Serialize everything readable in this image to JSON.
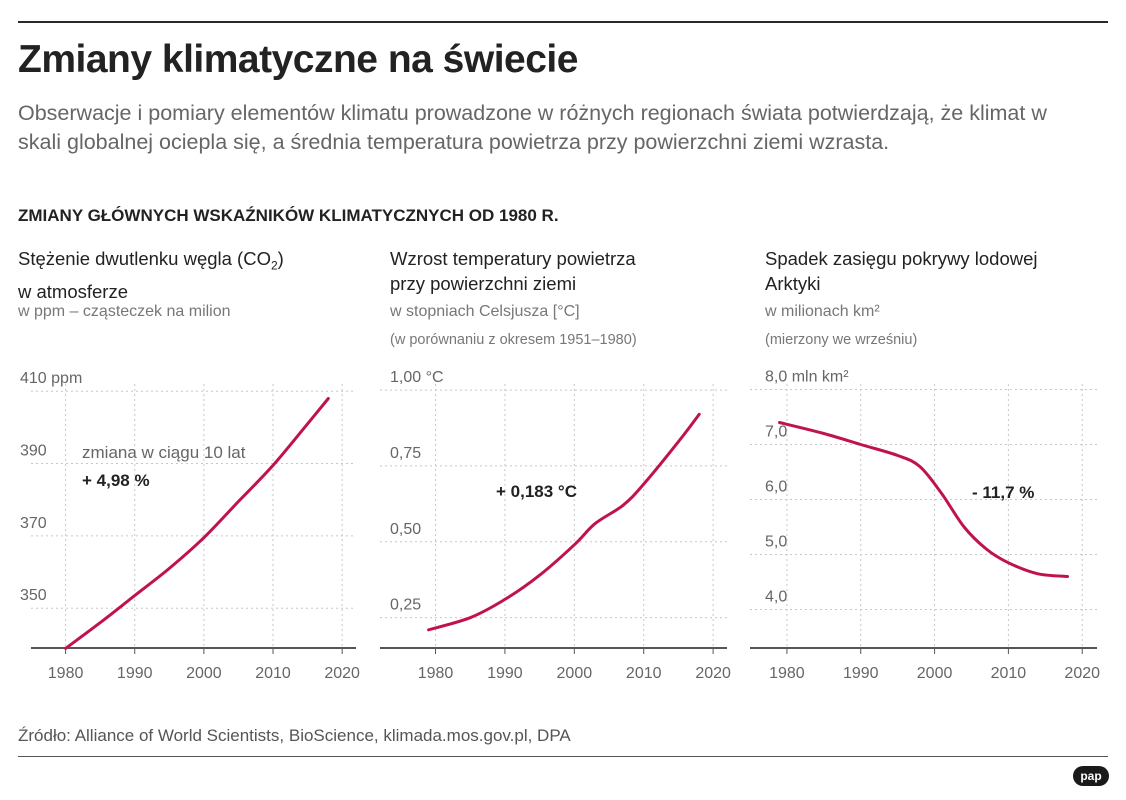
{
  "title": "Zmiany klimatyczne na świecie",
  "lead": "Obserwacje i pomiary elementów klimatu prowadzone w różnych regionach świata potwierdzają, że klimat w skali globalnej ociepla się, a średnia temperatura powietrza przy powierzchni ziemi wzrasta.",
  "section_heading": "ZMIANY GŁÓWNYCH WSKAŹNIKÓW KLIMATYCZNYCH OD 1980 R.",
  "panels": [
    {
      "title_1": "Stężenie dwutlenku węgla (CO",
      "title_sub": "2",
      "title_2": ")",
      "title_3": "w atmosferze",
      "unit": "w ppm – cząsteczek na milion"
    },
    {
      "title_1": "Wzrost temperatury powietrza",
      "title_2": "przy powierzchni ziemi",
      "unit": "w stopniach Celsjusza [°C]",
      "note": "(w porównaniu z okresem 1951–1980)"
    },
    {
      "title_1": "Spadek zasięgu pokrywy lodowej",
      "title_2": "Arktyki",
      "unit": "w milionach km²",
      "note": "(mierzony we wrześniu)"
    }
  ],
  "source": "Źródło: Alliance of World Scientists, BioScience, klimada.mos.gov.pl, DPA",
  "logo": "pap",
  "colors": {
    "line": "#c0134e",
    "grid": "#c8c8c8",
    "axis": "#555555"
  },
  "chart_data": [
    {
      "type": "line",
      "title": "Stężenie dwutlenku węgla (CO2) w atmosferze",
      "ylabel": "w ppm – cząsteczek na milion",
      "xlim": [
        1975,
        2022
      ],
      "ylim": [
        339,
        412
      ],
      "x_ticks": [
        1980,
        1990,
        2000,
        2010,
        2020
      ],
      "x_tick_labels": [
        "1980",
        "1990",
        "2000",
        "2010",
        "2020"
      ],
      "y_ticks": [
        350,
        370,
        390,
        410
      ],
      "y_tick_labels": [
        "350",
        "370",
        "390",
        "410 ppm"
      ],
      "grid": true,
      "annotation": {
        "label": "zmiana w ciągu 10 lat",
        "value": "+ 4,98 %"
      },
      "series": [
        {
          "x": [
            1980,
            1985,
            1990,
            1995,
            2000,
            2005,
            2010,
            2015,
            2018
          ],
          "y": [
            338.9,
            346,
            353.5,
            361,
            369.5,
            379.5,
            389.5,
            401,
            408
          ]
        }
      ]
    },
    {
      "type": "line",
      "title": "Wzrost temperatury powietrza przy powierzchni ziemi",
      "ylabel": "w stopniach Celsjusza [°C]",
      "xlim": [
        1972,
        2022
      ],
      "ylim": [
        0.15,
        1.02
      ],
      "x_ticks": [
        1980,
        1990,
        2000,
        2010,
        2020
      ],
      "x_tick_labels": [
        "1980",
        "1990",
        "2000",
        "2010",
        "2020"
      ],
      "y_ticks": [
        0.25,
        0.5,
        0.75,
        1.0
      ],
      "y_tick_labels": [
        "0,25",
        "0,50",
        "0,75",
        "1,00 °C"
      ],
      "grid": true,
      "annotation": {
        "label": "",
        "value": "+ 0,183 °C"
      },
      "series": [
        {
          "x": [
            1979,
            1985,
            1990,
            1995,
            2000,
            2003,
            2007,
            2010,
            2015,
            2018
          ],
          "y": [
            0.21,
            0.25,
            0.31,
            0.39,
            0.49,
            0.56,
            0.62,
            0.69,
            0.83,
            0.92
          ]
        }
      ]
    },
    {
      "type": "line",
      "title": "Spadek zasięgu pokrywy lodowej Arktyki",
      "ylabel": "w milionach km²",
      "xlim": [
        1975,
        2022
      ],
      "ylim": [
        3.3,
        8.1
      ],
      "x_ticks": [
        1980,
        1990,
        2000,
        2010,
        2020
      ],
      "x_tick_labels": [
        "1980",
        "1990",
        "2000",
        "2010",
        "2020"
      ],
      "y_ticks": [
        4.0,
        5.0,
        6.0,
        7.0,
        8.0
      ],
      "y_tick_labels": [
        "4,0",
        "5,0",
        "6,0",
        "7,0",
        "8,0 mln km²"
      ],
      "grid": true,
      "annotation": {
        "label": "",
        "value": "- 11,7 %"
      },
      "series": [
        {
          "x": [
            1979,
            1985,
            1990,
            1995,
            1998,
            2001,
            2004,
            2007,
            2010,
            2014,
            2018
          ],
          "y": [
            7.4,
            7.2,
            7.0,
            6.8,
            6.6,
            6.1,
            5.5,
            5.1,
            4.85,
            4.65,
            4.6
          ]
        }
      ]
    }
  ]
}
